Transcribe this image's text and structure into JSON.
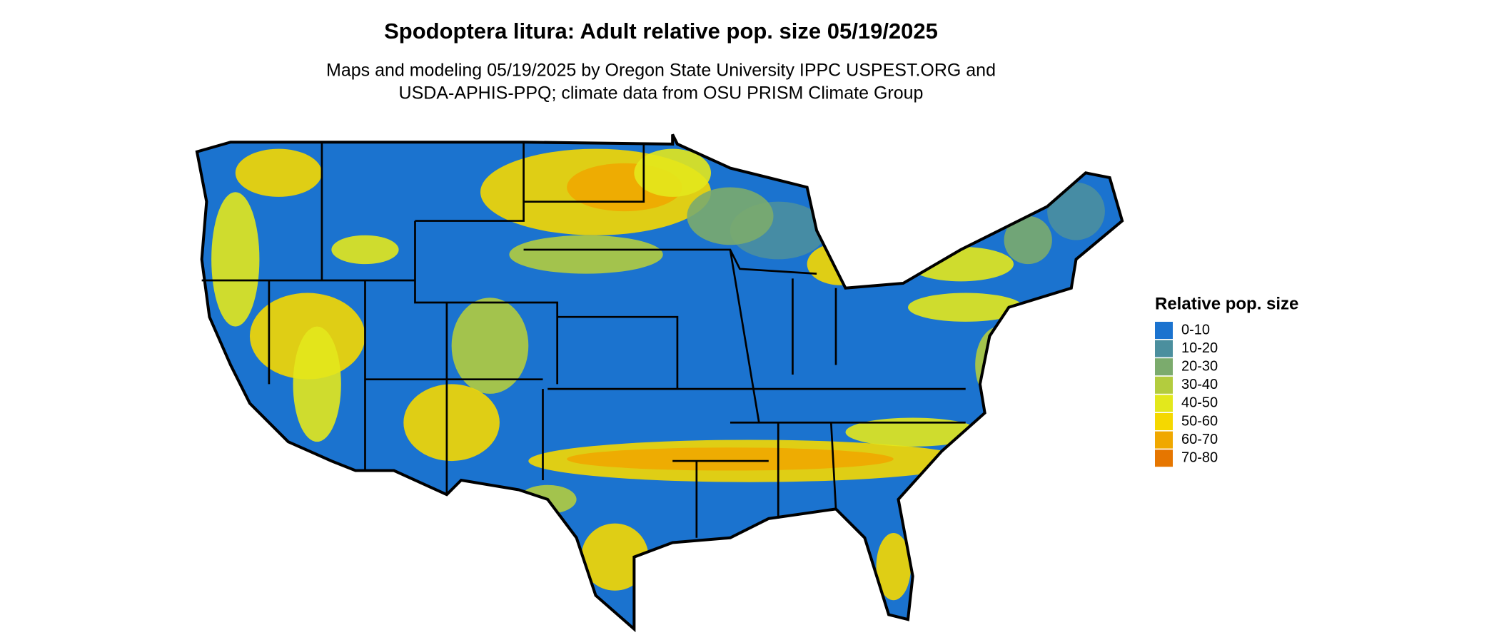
{
  "title": "Spodoptera litura: Adult relative pop. size 05/19/2025",
  "subtitle": [
    "Maps and modeling 05/19/2025 by Oregon State University IPPC USPEST.ORG and",
    "USDA-APHIS-PPQ; climate data from OSU PRISM Climate Group"
  ],
  "legend": {
    "title": "Relative pop. size",
    "items": [
      {
        "label": "0-10",
        "color": "#1b73cf"
      },
      {
        "label": "10-20",
        "color": "#4b8f9e"
      },
      {
        "label": "20-30",
        "color": "#7bab6d"
      },
      {
        "label": "30-40",
        "color": "#b3cc3e"
      },
      {
        "label": "40-50",
        "color": "#e3e81c"
      },
      {
        "label": "50-60",
        "color": "#f5d800"
      },
      {
        "label": "60-70",
        "color": "#f0a800"
      },
      {
        "label": "70-80",
        "color": "#e67600"
      }
    ]
  }
}
